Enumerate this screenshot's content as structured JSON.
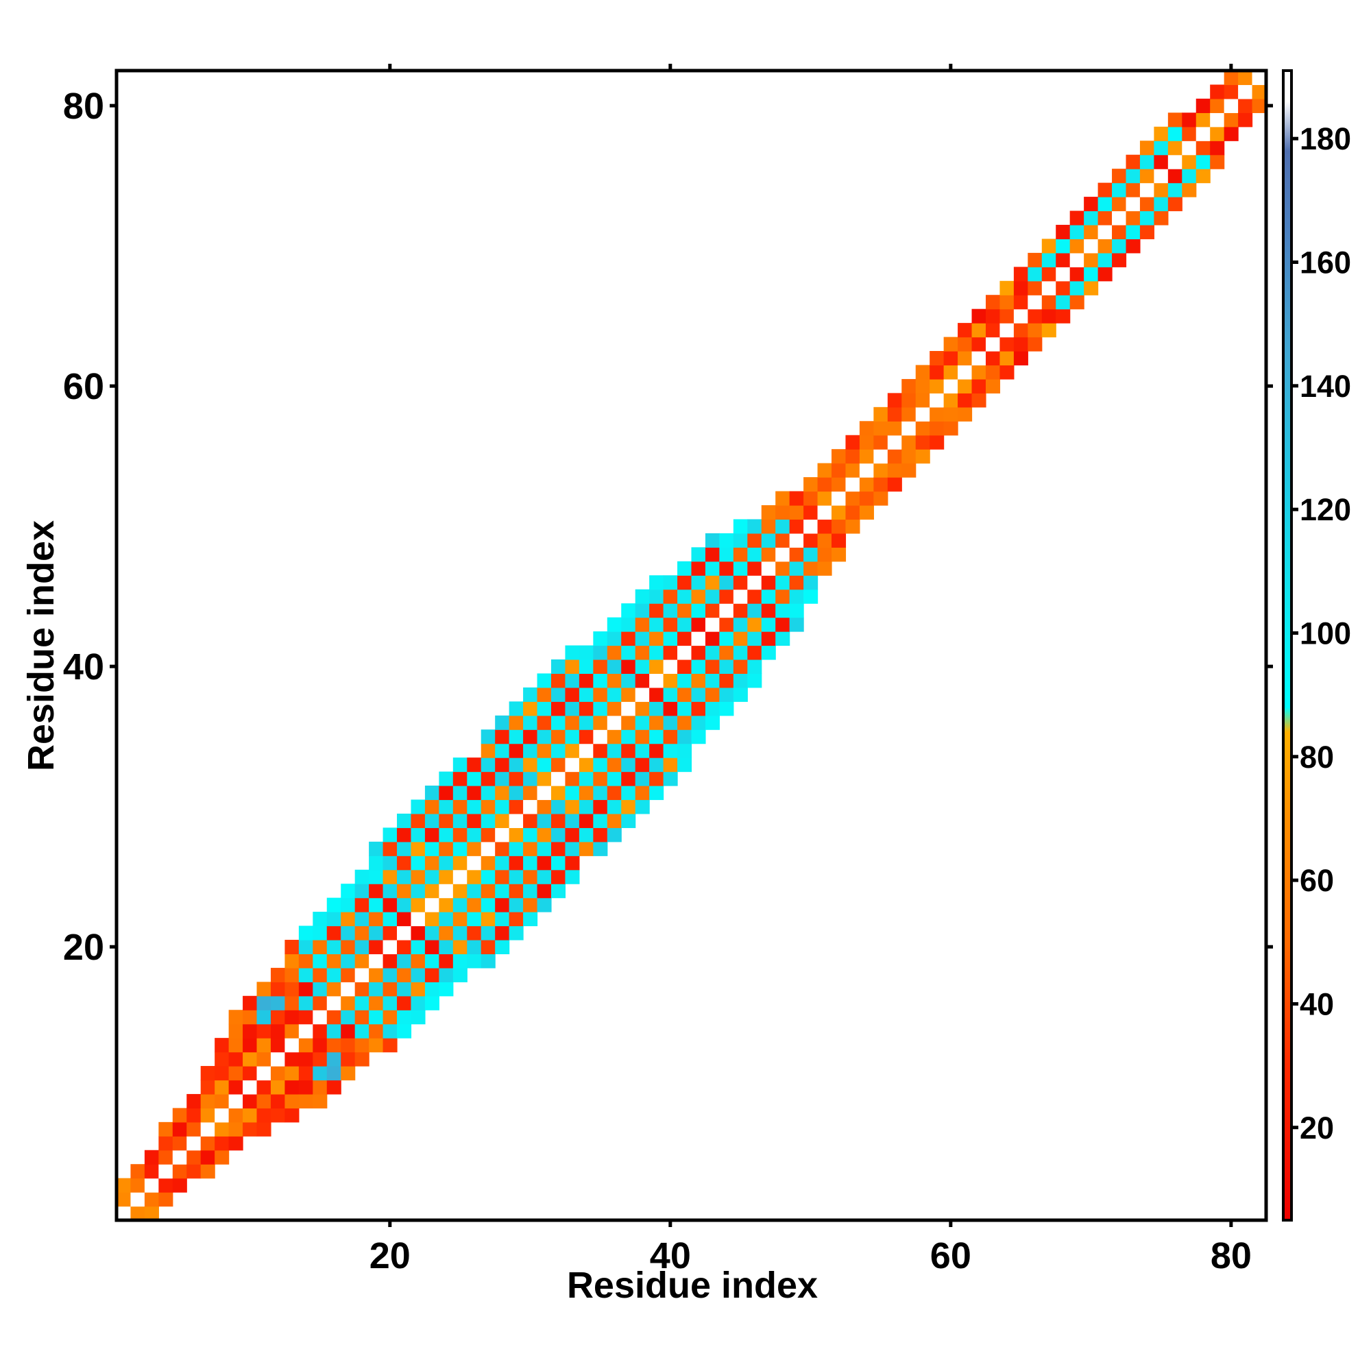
{
  "chart_data": {
    "type": "heatmap",
    "title": "",
    "xlabel": "Residue index",
    "ylabel": "Residue index",
    "xlim": [
      0.5,
      82.5
    ],
    "ylim": [
      0.5,
      82.5
    ],
    "xticks": [
      20,
      40,
      60,
      80
    ],
    "yticks": [
      20,
      40,
      60,
      80
    ],
    "colorbar": {
      "range": [
        5,
        191
      ],
      "ticks": [
        20,
        40,
        60,
        80,
        100,
        120,
        140,
        160,
        180
      ],
      "palette": [
        {
          "value": 5,
          "color": "#ee0000"
        },
        {
          "value": 30,
          "color": "#ff2a00"
        },
        {
          "value": 50,
          "color": "#ff6a00"
        },
        {
          "value": 70,
          "color": "#ff8f00"
        },
        {
          "value": 84,
          "color": "#ffb000"
        },
        {
          "value": 88,
          "color": "#00ffff"
        },
        {
          "value": 105,
          "color": "#10e8f0"
        },
        {
          "value": 125,
          "color": "#20c8e4"
        },
        {
          "value": 145,
          "color": "#40a8d4"
        },
        {
          "value": 165,
          "color": "#4a80c0"
        },
        {
          "value": 178,
          "color": "#5070b0"
        },
        {
          "value": 186,
          "color": "#ffffff"
        },
        {
          "value": 191,
          "color": "#ffffff"
        }
      ]
    },
    "data_description": "Symmetric residue-pair value matrix: diagonal cells near 180, off-diagonal cells alternating 10-80 and 90-130, populated within a band around the diagonal (wider for residues ~15-47)",
    "band": [
      {
        "i": 1,
        "w": 2
      },
      {
        "i": 5,
        "w": 2
      },
      {
        "i": 9,
        "w": 3
      },
      {
        "i": 12,
        "w": 4
      },
      {
        "i": 16,
        "w": 6
      },
      {
        "i": 24,
        "w": 7
      },
      {
        "i": 30,
        "w": 8
      },
      {
        "i": 36,
        "w": 7
      },
      {
        "i": 42,
        "w": 6
      },
      {
        "i": 46,
        "w": 4
      },
      {
        "i": 50,
        "w": 3
      },
      {
        "i": 60,
        "w": 3
      },
      {
        "i": 66,
        "w": 3
      },
      {
        "i": 72,
        "w": 3
      },
      {
        "i": 80,
        "w": 2
      },
      {
        "i": 82,
        "w": 2
      }
    ],
    "special_cells": [
      {
        "x": 11,
        "y": 16,
        "v": 140
      },
      {
        "x": 12,
        "y": 16,
        "v": 135
      },
      {
        "x": 16,
        "y": 11,
        "v": 140
      },
      {
        "x": 16,
        "y": 12,
        "v": 135
      },
      {
        "x": 15,
        "y": 11,
        "v": 125
      },
      {
        "x": 11,
        "y": 15,
        "v": 125
      }
    ]
  }
}
